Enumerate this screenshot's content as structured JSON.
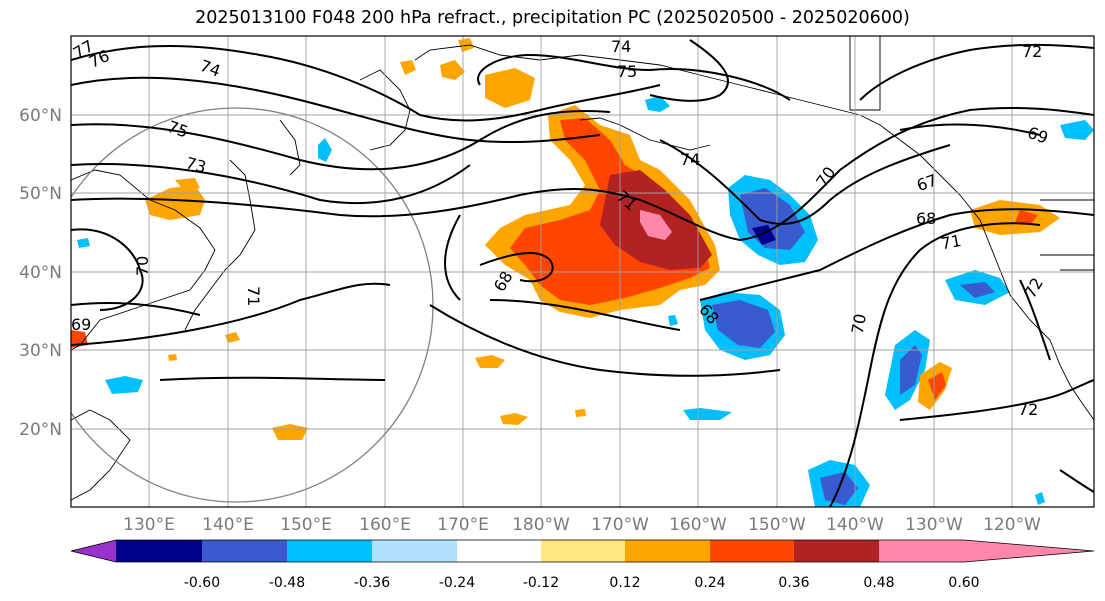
{
  "title": "2025013100 F048 200 hPa refract., precipitation PC (2025020500 - 2025020600)",
  "lat_labels": [
    "60°N",
    "50°N",
    "40°N",
    "30°N",
    "20°N"
  ],
  "lon_labels": [
    "130°E",
    "140°E",
    "150°E",
    "160°E",
    "170°E",
    "180°W",
    "170°W",
    "160°W",
    "150°W",
    "140°W",
    "130°W",
    "120°W"
  ],
  "contour_labels": [
    "77",
    "76",
    "74",
    "74",
    "75",
    "75",
    "73",
    "74",
    "71",
    "70",
    "69",
    "68",
    "71",
    "68",
    "68",
    "70",
    "72",
    "72",
    "71",
    "69",
    "67",
    "72",
    "70"
  ],
  "colorbar": {
    "ticks": [
      "-0.60",
      "-0.48",
      "-0.36",
      "-0.24",
      "-0.12",
      "0.12",
      "0.24",
      "0.36",
      "0.48",
      "0.60"
    ],
    "colors": [
      "#9932cc",
      "#00008b",
      "#3a5bd0",
      "#00bfff",
      "#b0e2ff",
      "#ffffff",
      "#ffe680",
      "#ffa500",
      "#ff4500",
      "#b22222",
      "#ff88aa"
    ]
  }
}
